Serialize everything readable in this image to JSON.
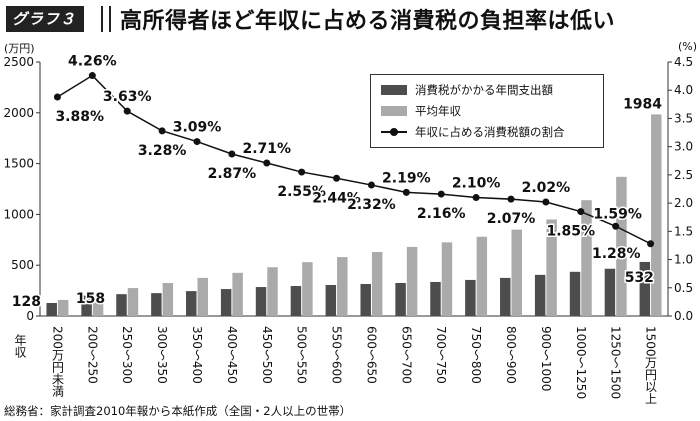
{
  "header": {
    "badge": "グラフ３",
    "title": "高所得者ほど年収に占める消費税の負担率は低い"
  },
  "left_unit": "(万円)",
  "right_unit": "(%)",
  "source": "総務省：家計調査2010年報から本紙作成（全国・2人以上の世帯）",
  "chart_data": {
    "type": "bar",
    "categories": [
      "200万円未満",
      "200〜250",
      "250〜300",
      "300〜350",
      "350〜400",
      "400〜450",
      "450〜500",
      "500〜550",
      "550〜600",
      "600〜650",
      "650〜700",
      "700〜750",
      "750〜800",
      "800〜900",
      "900〜1000",
      "1000〜1250",
      "1250〜1500",
      "1500万円以上"
    ],
    "xlabel": "年収",
    "ylabel_left": "(万円)",
    "ylabel_right": "(%)",
    "ylim_left": [
      0,
      2500
    ],
    "yticks_left": [
      0,
      500,
      1000,
      1500,
      2000,
      2500
    ],
    "ylim_right": [
      0,
      4.5
    ],
    "yticks_right": [
      0.0,
      0.5,
      1.0,
      1.5,
      2.0,
      2.5,
      3.0,
      3.5,
      4.0,
      4.5
    ],
    "grid": false,
    "legend_position": "top-right",
    "series": [
      {
        "name": "消費税がかかる年間支出額",
        "type": "bar",
        "axis": "left",
        "color": "#4d4d4d",
        "values": [
          128,
          200,
          215,
          225,
          245,
          265,
          285,
          295,
          305,
          315,
          325,
          335,
          355,
          375,
          405,
          435,
          465,
          532
        ]
      },
      {
        "name": "平均年収",
        "type": "bar",
        "axis": "left",
        "color": "#aaaaaa",
        "values": [
          158,
          225,
          275,
          325,
          375,
          425,
          480,
          530,
          580,
          630,
          680,
          725,
          780,
          850,
          950,
          1140,
          1370,
          1984
        ]
      },
      {
        "name": "年収に占める消費税額の割合",
        "type": "line",
        "axis": "right",
        "color": "#111111",
        "values": [
          3.88,
          4.26,
          3.63,
          3.28,
          3.09,
          2.87,
          2.71,
          2.55,
          2.44,
          2.32,
          2.19,
          2.16,
          2.1,
          2.07,
          2.02,
          1.85,
          1.59,
          1.28
        ]
      }
    ],
    "bar_data_labels": [
      {
        "series": 0,
        "index": 0,
        "text": "128"
      },
      {
        "series": 1,
        "index": 0,
        "text": "158"
      },
      {
        "series": 0,
        "index": 17,
        "text": "532"
      },
      {
        "series": 1,
        "index": 17,
        "text": "1984"
      }
    ],
    "line_data_labels": [
      "3.88%",
      "4.26%",
      "3.63%",
      "3.28%",
      "3.09%",
      "2.87%",
      "2.71%",
      "2.55%",
      "2.44%",
      "2.32%",
      "2.19%",
      "2.16%",
      "2.10%",
      "2.07%",
      "2.02%",
      "1.85%",
      "1.59%",
      "1.28%"
    ]
  }
}
